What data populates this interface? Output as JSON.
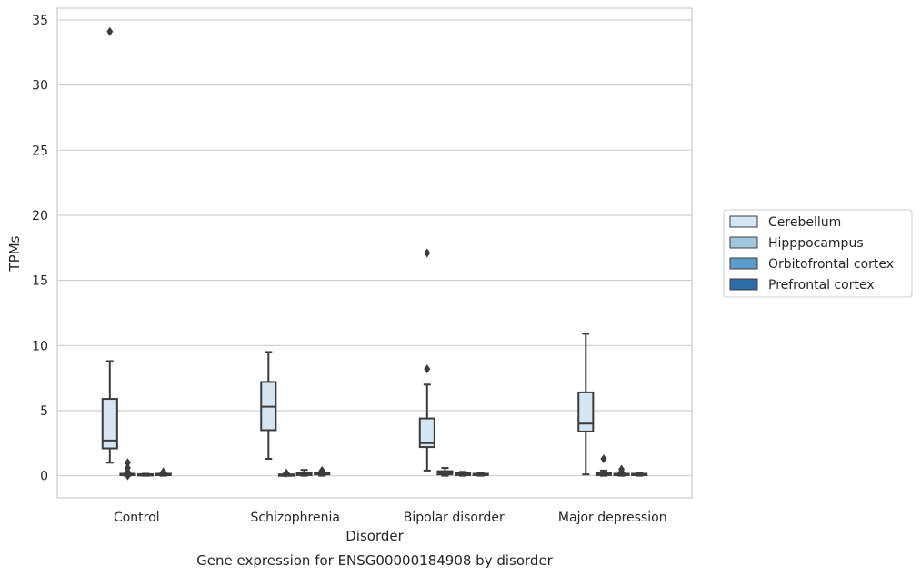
{
  "chart_data": {
    "type": "box",
    "caption": "Gene expression for ENSG00000184908 by disorder",
    "xlabel": "Disorder",
    "ylabel": "TPMs",
    "ylim": [
      -1.7,
      35.9
    ],
    "yticks": [
      0,
      5,
      10,
      15,
      20,
      25,
      30,
      35
    ],
    "grid": true,
    "legend_position": "right",
    "categories": [
      "Control",
      "Schizophrenia",
      "Bipolar disorder",
      "Major depression"
    ],
    "colors": {
      "Cerebellum": "#d6e5f2",
      "Hipppocampus": "#9fc7e0",
      "Orbitofrontal cortex": "#5b9dc9",
      "Prefrontal cortex": "#2b6ca9",
      "box_edge": "#3c3c3c",
      "grid": "#cccccc"
    },
    "series": [
      {
        "name": "Cerebellum",
        "boxes": [
          {
            "q1": 2.1,
            "median": 2.7,
            "q3": 5.9,
            "whislo": 1.0,
            "whishi": 8.8,
            "fliers": [
              34.1
            ]
          },
          {
            "q1": 3.5,
            "median": 5.3,
            "q3": 7.2,
            "whislo": 1.3,
            "whishi": 9.5,
            "fliers": []
          },
          {
            "q1": 2.2,
            "median": 2.5,
            "q3": 4.4,
            "whislo": 0.4,
            "whishi": 7.0,
            "fliers": [
              8.2,
              17.1
            ]
          },
          {
            "q1": 3.4,
            "median": 4.0,
            "q3": 6.4,
            "whislo": 0.1,
            "whishi": 10.9,
            "fliers": []
          }
        ]
      },
      {
        "name": "Hipppocampus",
        "boxes": [
          {
            "q1": 0.05,
            "median": 0.1,
            "q3": 0.15,
            "whislo": 0.0,
            "whishi": 0.2,
            "fliers": [
              0.0,
              0.3,
              0.6,
              1.0
            ]
          },
          {
            "q1": 0.03,
            "median": 0.06,
            "q3": 0.1,
            "whislo": 0.0,
            "whishi": 0.15,
            "fliers": [
              0.2
            ]
          },
          {
            "q1": 0.1,
            "median": 0.2,
            "q3": 0.35,
            "whislo": 0.0,
            "whishi": 0.6,
            "fliers": []
          },
          {
            "q1": 0.05,
            "median": 0.1,
            "q3": 0.2,
            "whislo": 0.0,
            "whishi": 0.4,
            "fliers": [
              1.3
            ]
          }
        ]
      },
      {
        "name": "Orbitofrontal cortex",
        "boxes": [
          {
            "q1": 0.05,
            "median": 0.08,
            "q3": 0.12,
            "whislo": 0.0,
            "whishi": 0.15,
            "fliers": []
          },
          {
            "q1": 0.05,
            "median": 0.12,
            "q3": 0.2,
            "whislo": 0.0,
            "whishi": 0.45,
            "fliers": []
          },
          {
            "q1": 0.05,
            "median": 0.1,
            "q3": 0.2,
            "whislo": 0.0,
            "whishi": 0.3,
            "fliers": []
          },
          {
            "q1": 0.05,
            "median": 0.1,
            "q3": 0.15,
            "whislo": 0.0,
            "whishi": 0.2,
            "fliers": [
              0.3,
              0.5
            ]
          }
        ]
      },
      {
        "name": "Prefrontal cortex",
        "boxes": [
          {
            "q1": 0.05,
            "median": 0.1,
            "q3": 0.15,
            "whislo": 0.0,
            "whishi": 0.2,
            "fliers": [
              0.3
            ]
          },
          {
            "q1": 0.1,
            "median": 0.15,
            "q3": 0.25,
            "whislo": 0.0,
            "whishi": 0.3,
            "fliers": [
              0.4
            ]
          },
          {
            "q1": 0.05,
            "median": 0.1,
            "q3": 0.15,
            "whislo": 0.0,
            "whishi": 0.2,
            "fliers": []
          },
          {
            "q1": 0.05,
            "median": 0.1,
            "q3": 0.15,
            "whislo": 0.0,
            "whishi": 0.2,
            "fliers": []
          }
        ]
      }
    ]
  }
}
